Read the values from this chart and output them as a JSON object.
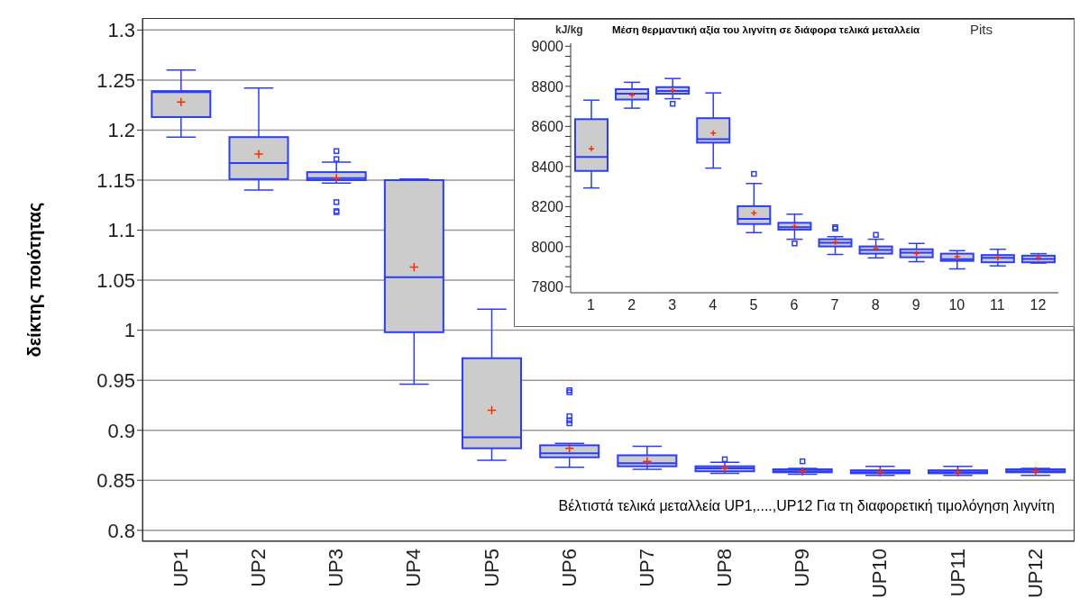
{
  "chart_data": [
    {
      "type": "box",
      "ylabel": "δείκτης ποιότητας",
      "categories": [
        "UP1",
        "UP2",
        "UP3",
        "UP4",
        "UP5",
        "UP6",
        "UP7",
        "UP8",
        "UP9",
        "UP10",
        "UP11",
        "UP12"
      ],
      "ylim": [
        0.789,
        1.312
      ],
      "yticks": [
        0.8,
        0.85,
        0.9,
        0.95,
        1,
        1.05,
        1.1,
        1.15,
        1.2,
        1.25,
        1.3
      ],
      "grid": "y",
      "annotations": [
        "Βέλτιστά τελικά μεταλλεία UP1,....,UP12 Για τη διαφορετική τιμολόγηση λιγνίτη"
      ],
      "series": [
        {
          "color": "#2a3cff",
          "boxes": [
            {
              "low": 1.193,
              "q1": 1.213,
              "median": 1.238,
              "q3": 1.239,
              "high": 1.26,
              "mean": 1.228
            },
            {
              "low": 1.14,
              "q1": 1.151,
              "median": 1.167,
              "q3": 1.193,
              "high": 1.242,
              "mean": 1.176
            },
            {
              "low": 1.147,
              "q1": 1.15,
              "median": 1.152,
              "q3": 1.158,
              "high": 1.168,
              "mean": 1.152,
              "outliers": [
                1.179,
                1.171,
                1.128,
                1.119,
                1.118
              ]
            },
            {
              "low": 0.946,
              "q1": 0.998,
              "median": 1.053,
              "q3": 1.15,
              "high": 1.151,
              "mean": 1.063
            },
            {
              "low": 0.87,
              "q1": 0.882,
              "median": 0.893,
              "q3": 0.972,
              "high": 1.021,
              "mean": 0.92
            },
            {
              "low": 0.863,
              "q1": 0.873,
              "median": 0.877,
              "q3": 0.885,
              "high": 0.887,
              "mean": 0.882,
              "outliers": [
                0.94,
                0.938,
                0.914,
                0.91,
                0.907
              ]
            },
            {
              "low": 0.861,
              "q1": 0.864,
              "median": 0.867,
              "q3": 0.875,
              "high": 0.884,
              "mean": 0.869
            },
            {
              "low": 0.857,
              "q1": 0.859,
              "median": 0.862,
              "q3": 0.864,
              "high": 0.868,
              "mean": 0.862,
              "outliers": [
                0.871
              ]
            },
            {
              "low": 0.856,
              "q1": 0.858,
              "median": 0.859,
              "q3": 0.861,
              "high": 0.862,
              "mean": 0.859,
              "outliers": [
                0.869
              ]
            },
            {
              "low": 0.855,
              "q1": 0.857,
              "median": 0.858,
              "q3": 0.86,
              "high": 0.864,
              "mean": 0.858
            },
            {
              "low": 0.855,
              "q1": 0.857,
              "median": 0.858,
              "q3": 0.86,
              "high": 0.864,
              "mean": 0.858
            },
            {
              "low": 0.855,
              "q1": 0.858,
              "median": 0.859,
              "q3": 0.861,
              "high": 0.862,
              "mean": 0.859
            }
          ]
        }
      ]
    },
    {
      "type": "box",
      "title": "Μέση θερμαντική αξία του λιγνίτη σε διάφορα τελικά μεταλλεία",
      "ylabel": "kJ/kg",
      "xlabel": "Pits",
      "x": [
        1,
        2,
        3,
        4,
        5,
        6,
        7,
        8,
        9,
        10,
        11,
        12
      ],
      "xlim": [
        0.5,
        12.5
      ],
      "xticks": [
        1,
        2,
        3,
        4,
        5,
        6,
        7,
        8,
        9,
        10,
        11,
        12
      ],
      "ylim": [
        7770,
        9015
      ],
      "yticks": [
        7800,
        {
          "value": 7850,
          "label": null
        },
        {
          "value": 7900,
          "label": null
        },
        {
          "value": 7950,
          "label": null
        },
        8000,
        {
          "value": 8050,
          "label": null
        },
        {
          "value": 8100,
          "label": null
        },
        {
          "value": 8150,
          "label": null
        },
        8200,
        {
          "value": 8250,
          "label": null
        },
        {
          "value": 8300,
          "label": null
        },
        {
          "value": 8350,
          "label": null
        },
        8400,
        {
          "value": 8450,
          "label": null
        },
        {
          "value": 8500,
          "label": null
        },
        {
          "value": 8550,
          "label": null
        },
        8600,
        {
          "value": 8650,
          "label": null
        },
        {
          "value": 8700,
          "label": null
        },
        {
          "value": 8750,
          "label": null
        },
        8800,
        {
          "value": 8850,
          "label": null
        },
        {
          "value": 8900,
          "label": null
        },
        {
          "value": 8950,
          "label": null
        },
        9000
      ],
      "series": [
        {
          "color": "#2a3cff",
          "boxes": [
            {
              "low": 8293,
              "q1": 8378,
              "median": 8447,
              "q3": 8636,
              "high": 8731,
              "mean": 8488
            },
            {
              "low": 8691,
              "q1": 8734,
              "median": 8763,
              "q3": 8786,
              "high": 8820,
              "mean": 8756
            },
            {
              "low": 8738,
              "q1": 8763,
              "median": 8777,
              "q3": 8796,
              "high": 8839,
              "mean": 8780,
              "outliers": [
                8713
              ]
            },
            {
              "low": 8392,
              "q1": 8519,
              "median": 8536,
              "q3": 8641,
              "high": 8767,
              "mean": 8567
            },
            {
              "low": 8070,
              "q1": 8113,
              "median": 8138,
              "q3": 8202,
              "high": 8315,
              "mean": 8168,
              "outliers": [
                8363
              ]
            },
            {
              "low": 8037,
              "q1": 8085,
              "median": 8097,
              "q3": 8119,
              "high": 8162,
              "mean": 8102,
              "outliers": [
                8016
              ]
            },
            {
              "low": 7961,
              "q1": 8001,
              "median": 8019,
              "q3": 8037,
              "high": 8050,
              "mean": 8023,
              "outliers": [
                8097,
                8090
              ]
            },
            {
              "low": 7944,
              "q1": 7965,
              "median": 7984,
              "q3": 8001,
              "high": 8037,
              "mean": 7990,
              "outliers": [
                8059
              ]
            },
            {
              "low": 7925,
              "q1": 7947,
              "median": 7970,
              "q3": 7987,
              "high": 8016,
              "mean": 7965
            },
            {
              "low": 7889,
              "q1": 7929,
              "median": 7937,
              "q3": 7965,
              "high": 7980,
              "mean": 7950
            },
            {
              "low": 7904,
              "q1": 7922,
              "median": 7944,
              "q3": 7958,
              "high": 7987,
              "mean": 7944
            },
            {
              "low": 7918,
              "q1": 7922,
              "median": 7939,
              "q3": 7955,
              "high": 7965,
              "mean": 7944
            }
          ]
        }
      ]
    }
  ]
}
